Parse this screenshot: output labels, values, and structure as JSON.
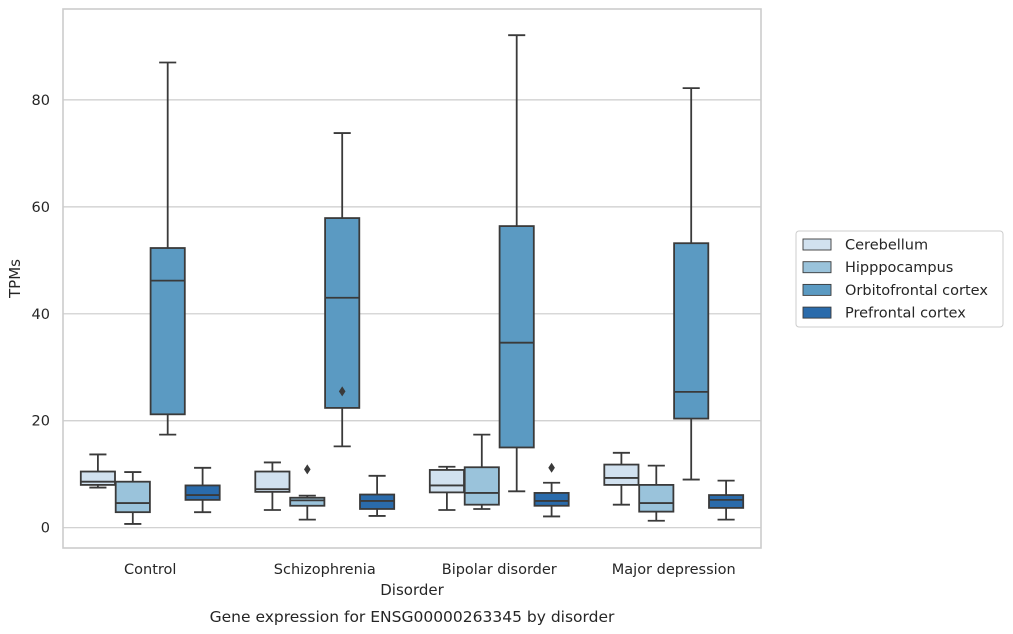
{
  "chart_data": {
    "type": "boxplot",
    "caption": "Gene expression for ENSG00000263345 by disorder",
    "xlabel": "Disorder",
    "ylabel": "TPMs",
    "ylim": [
      -3.8,
      97
    ],
    "yticks": [
      0,
      20,
      40,
      60,
      80
    ],
    "grid": "horizontal",
    "legend_position": "right",
    "categories": [
      "Control",
      "Schizophrenia",
      "Bipolar disorder",
      "Major depression"
    ],
    "series": [
      {
        "name": "Cerebellum",
        "color": "#d1e1ef",
        "boxes": [
          {
            "whisker_low": 7.5,
            "q1": 8.0,
            "median": 8.6,
            "q3": 10.5,
            "whisker_high": 13.7,
            "outliers": []
          },
          {
            "whisker_low": 3.3,
            "q1": 6.7,
            "median": 7.2,
            "q3": 10.5,
            "whisker_high": 12.2,
            "outliers": []
          },
          {
            "whisker_low": 3.3,
            "q1": 6.6,
            "median": 7.9,
            "q3": 10.8,
            "whisker_high": 11.4,
            "outliers": []
          },
          {
            "whisker_low": 4.3,
            "q1": 8.0,
            "median": 9.3,
            "q3": 11.8,
            "whisker_high": 14.0,
            "outliers": []
          }
        ]
      },
      {
        "name": "Hipppocampus",
        "color": "#9ac3db",
        "boxes": [
          {
            "whisker_low": 0.7,
            "q1": 2.9,
            "median": 4.6,
            "q3": 8.6,
            "whisker_high": 10.4,
            "outliers": []
          },
          {
            "whisker_low": 1.5,
            "q1": 4.1,
            "median": 5.1,
            "q3": 5.6,
            "whisker_high": 6.0,
            "outliers": [
              10.9
            ]
          },
          {
            "whisker_low": 3.5,
            "q1": 4.3,
            "median": 6.5,
            "q3": 11.3,
            "whisker_high": 17.4,
            "outliers": []
          },
          {
            "whisker_low": 1.3,
            "q1": 3.0,
            "median": 4.6,
            "q3": 8.0,
            "whisker_high": 11.6,
            "outliers": []
          }
        ]
      },
      {
        "name": "Orbitofrontal cortex",
        "color": "#5b9ac2",
        "boxes": [
          {
            "whisker_low": 17.4,
            "q1": 21.2,
            "median": 46.2,
            "q3": 52.3,
            "whisker_high": 87.0,
            "outliers": []
          },
          {
            "whisker_low": 15.2,
            "q1": 22.4,
            "median": 43.0,
            "q3": 57.9,
            "whisker_high": 73.8,
            "outliers": [
              25.5
            ]
          },
          {
            "whisker_low": 6.8,
            "q1": 15.0,
            "median": 34.6,
            "q3": 56.4,
            "whisker_high": 92.1,
            "outliers": []
          },
          {
            "whisker_low": 9.0,
            "q1": 20.4,
            "median": 25.4,
            "q3": 53.2,
            "whisker_high": 82.2,
            "outliers": []
          }
        ]
      },
      {
        "name": "Prefrontal cortex",
        "color": "#2a6bab",
        "boxes": [
          {
            "whisker_low": 2.9,
            "q1": 5.2,
            "median": 6.1,
            "q3": 7.9,
            "whisker_high": 11.2,
            "outliers": []
          },
          {
            "whisker_low": 2.2,
            "q1": 3.5,
            "median": 5.0,
            "q3": 6.2,
            "whisker_high": 9.7,
            "outliers": []
          },
          {
            "whisker_low": 2.1,
            "q1": 4.1,
            "median": 5.0,
            "q3": 6.5,
            "whisker_high": 8.4,
            "outliers": [
              11.2
            ]
          },
          {
            "whisker_low": 1.5,
            "q1": 3.7,
            "median": 5.2,
            "q3": 6.1,
            "whisker_high": 8.8,
            "outliers": []
          }
        ]
      }
    ]
  }
}
